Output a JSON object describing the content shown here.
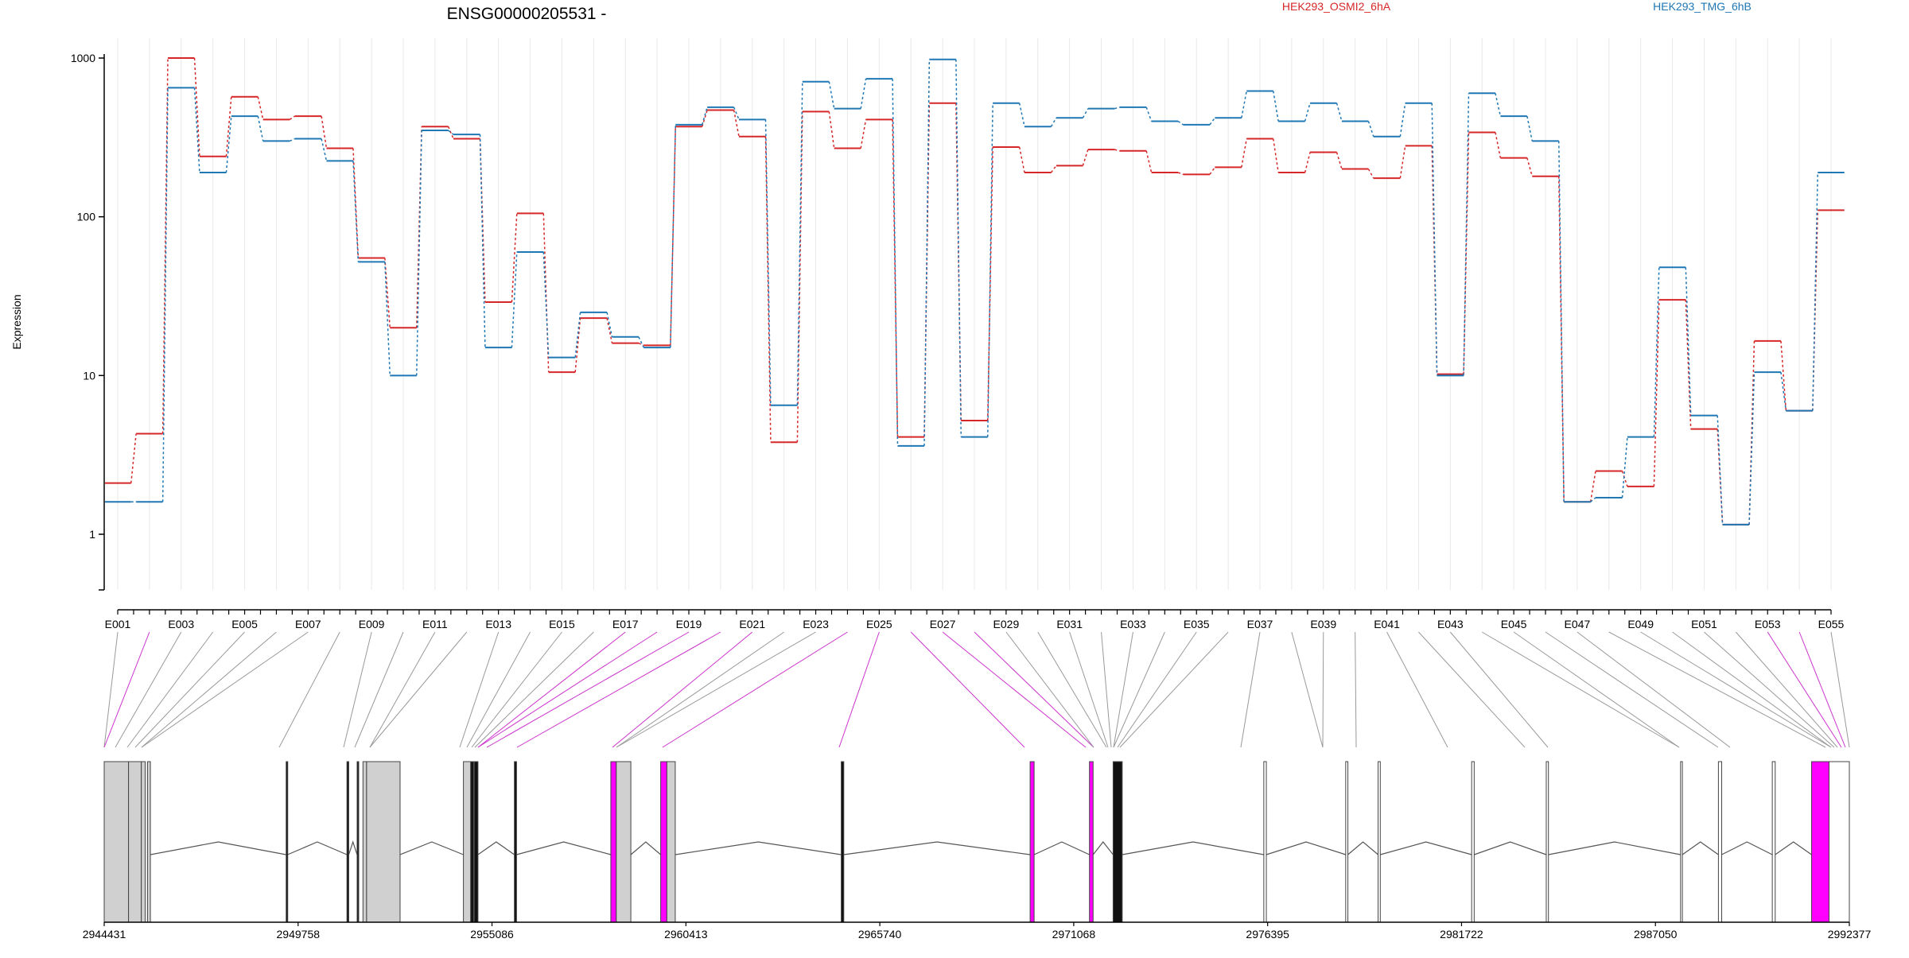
{
  "title": "ENSG00000205531 -",
  "legend": [
    {
      "name": "HEK293_OSMI2_6hA",
      "color": "#d62728"
    },
    {
      "name": "HEK293_TMG_6hB",
      "color": "#1f77b4"
    }
  ],
  "colors": {
    "exon_fill": "#d0d0d0",
    "exon_highlight": "#ff00ff",
    "connector_gray": "#999999",
    "connector_magenta": "#cc33cc",
    "grid": "#e8e8e8",
    "axis": "#000000"
  },
  "chart_data": {
    "type": "line",
    "ylabel": "Expression",
    "yscale": "log",
    "ylim": [
      0.5,
      1000
    ],
    "yticks": [
      "1",
      "10",
      "100",
      "1000"
    ],
    "categories": [
      "E001",
      "E002",
      "E003",
      "E004",
      "E005",
      "E006",
      "E007",
      "E008",
      "E009",
      "E010",
      "E011",
      "E012",
      "E013",
      "E014",
      "E015",
      "E016",
      "E017",
      "E018",
      "E019",
      "E020",
      "E021",
      "E022",
      "E023",
      "E024",
      "E025",
      "E026",
      "E027",
      "E028",
      "E029",
      "E030",
      "E031",
      "E032",
      "E033",
      "E034",
      "E035",
      "E036",
      "E037",
      "E038",
      "E039",
      "E040",
      "E041",
      "E042",
      "E043",
      "E044",
      "E045",
      "E046",
      "E047",
      "E048",
      "E049",
      "E050",
      "E051",
      "E052",
      "E053",
      "E054",
      "E055"
    ],
    "series": [
      {
        "name": "HEK293_OSMI2_6hA",
        "values": [
          2.1,
          4.3,
          1000,
          240,
          570,
          410,
          430,
          270,
          55,
          20,
          370,
          310,
          29,
          105,
          10.5,
          23,
          16,
          15.5,
          370,
          470,
          320,
          3.8,
          460,
          270,
          410,
          4.1,
          520,
          5.2,
          275,
          190,
          210,
          265,
          260,
          190,
          185,
          205,
          310,
          190,
          255,
          200,
          175,
          280,
          10.2,
          340,
          235,
          180,
          1.6,
          2.5,
          2,
          30,
          4.6,
          1.15,
          16.5,
          6,
          110
        ]
      },
      {
        "name": "HEK293_TMG_6hB",
        "values": [
          1.6,
          1.6,
          650,
          190,
          430,
          300,
          310,
          225,
          52,
          10,
          350,
          330,
          15,
          60,
          13,
          25,
          17.5,
          15,
          380,
          490,
          410,
          6.5,
          710,
          480,
          740,
          3.6,
          980,
          4.1,
          520,
          370,
          420,
          480,
          490,
          400,
          380,
          420,
          620,
          400,
          520,
          400,
          320,
          520,
          10,
          600,
          430,
          300,
          1.6,
          1.7,
          4.1,
          48,
          5.6,
          1.15,
          10.5,
          6,
          190
        ]
      }
    ],
    "xaxis_positions": [
      "2944431",
      "2949758",
      "2955086",
      "2960413",
      "2965740",
      "2971068",
      "2976395",
      "2981722",
      "2987050",
      "2992377"
    ]
  }
}
